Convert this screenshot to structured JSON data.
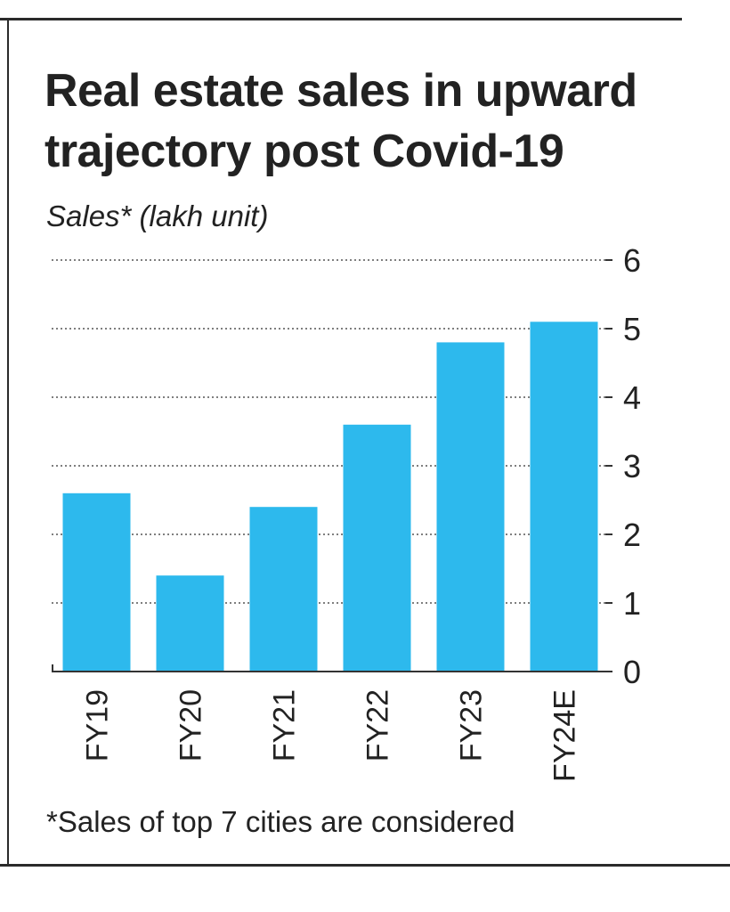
{
  "title": "Real estate sales in upward trajectory post Covid-19",
  "subtitle": "Sales* (lakh unit)",
  "footnote": "*Sales of top 7 cities are considered",
  "colors": {
    "bar": "#2db9ed",
    "axis": "#333333",
    "grid": "#555555"
  },
  "chart_data": {
    "type": "bar",
    "title": "Real estate sales in upward trajectory post Covid-19",
    "ylabel": "Sales* (lakh unit)",
    "xlabel": "",
    "categories": [
      "FY19",
      "FY20",
      "FY21",
      "FY22",
      "FY23",
      "FY24E"
    ],
    "values": [
      2.6,
      1.4,
      2.4,
      3.6,
      4.8,
      5.1
    ],
    "ylim": [
      0,
      6
    ],
    "yticks": [
      0,
      1,
      2,
      3,
      4,
      5,
      6
    ],
    "y_axis_side": "right",
    "grid": "horizontal dotted",
    "legend": "none"
  }
}
